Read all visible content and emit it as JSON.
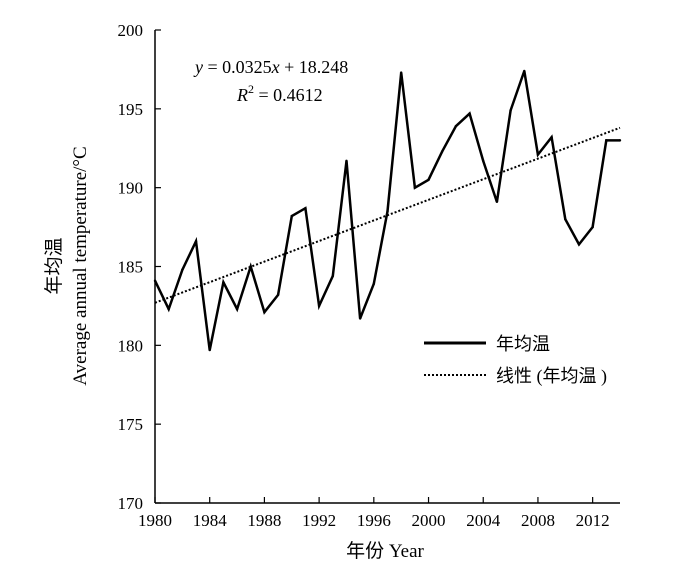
{
  "chart_data": {
    "type": "line",
    "xlabel": "年份 Year",
    "ylabel": "年均温",
    "ylabel_en": "Average annual temperature/°C",
    "xlim": [
      1980,
      2014
    ],
    "ylim": [
      170,
      200
    ],
    "x_ticks": [
      "1980",
      "1984",
      "1988",
      "1992",
      "1996",
      "2000",
      "2004",
      "2008",
      "2012"
    ],
    "y_ticks": [
      "170",
      "175",
      "180",
      "185",
      "190",
      "195",
      "200"
    ],
    "grid": false,
    "legend_position": "right",
    "equation": {
      "y": "y",
      "eq_text": " = 0.0325",
      "x": "x",
      "eq_text2": " + 18.248",
      "r": "R",
      "r_sup": "2",
      "r_text": " = 0.4612"
    },
    "trend_intercept": 18.248,
    "trend_slope": 0.0325,
    "trend_x": [
      1980,
      2014
    ],
    "trend_y": [
      182.7,
      193.8
    ],
    "series": [
      {
        "name": "年均温",
        "x": [
          1980,
          1981,
          1982,
          1983,
          1984,
          1985,
          1986,
          1987,
          1988,
          1989,
          1990,
          1991,
          1992,
          1993,
          1994,
          1995,
          1996,
          1997,
          1998,
          1999,
          2000,
          2001,
          2002,
          2003,
          2004,
          2005,
          2006,
          2007,
          2008,
          2009,
          2010,
          2011,
          2012,
          2013,
          2014
        ],
        "values": [
          184.1,
          182.3,
          184.8,
          186.6,
          179.7,
          184.0,
          182.3,
          185.0,
          182.1,
          183.2,
          188.2,
          188.7,
          182.5,
          184.4,
          191.7,
          181.7,
          183.9,
          188.5,
          197.3,
          190.0,
          190.5,
          192.3,
          193.9,
          194.7,
          191.7,
          189.1,
          194.9,
          197.4,
          192.1,
          193.2,
          188.0,
          186.4,
          187.5,
          193.0,
          193.0
        ]
      },
      {
        "name": "线性 (年均温 )"
      }
    ]
  },
  "colors": {
    "line": "#000000",
    "background": "#ffffff"
  }
}
